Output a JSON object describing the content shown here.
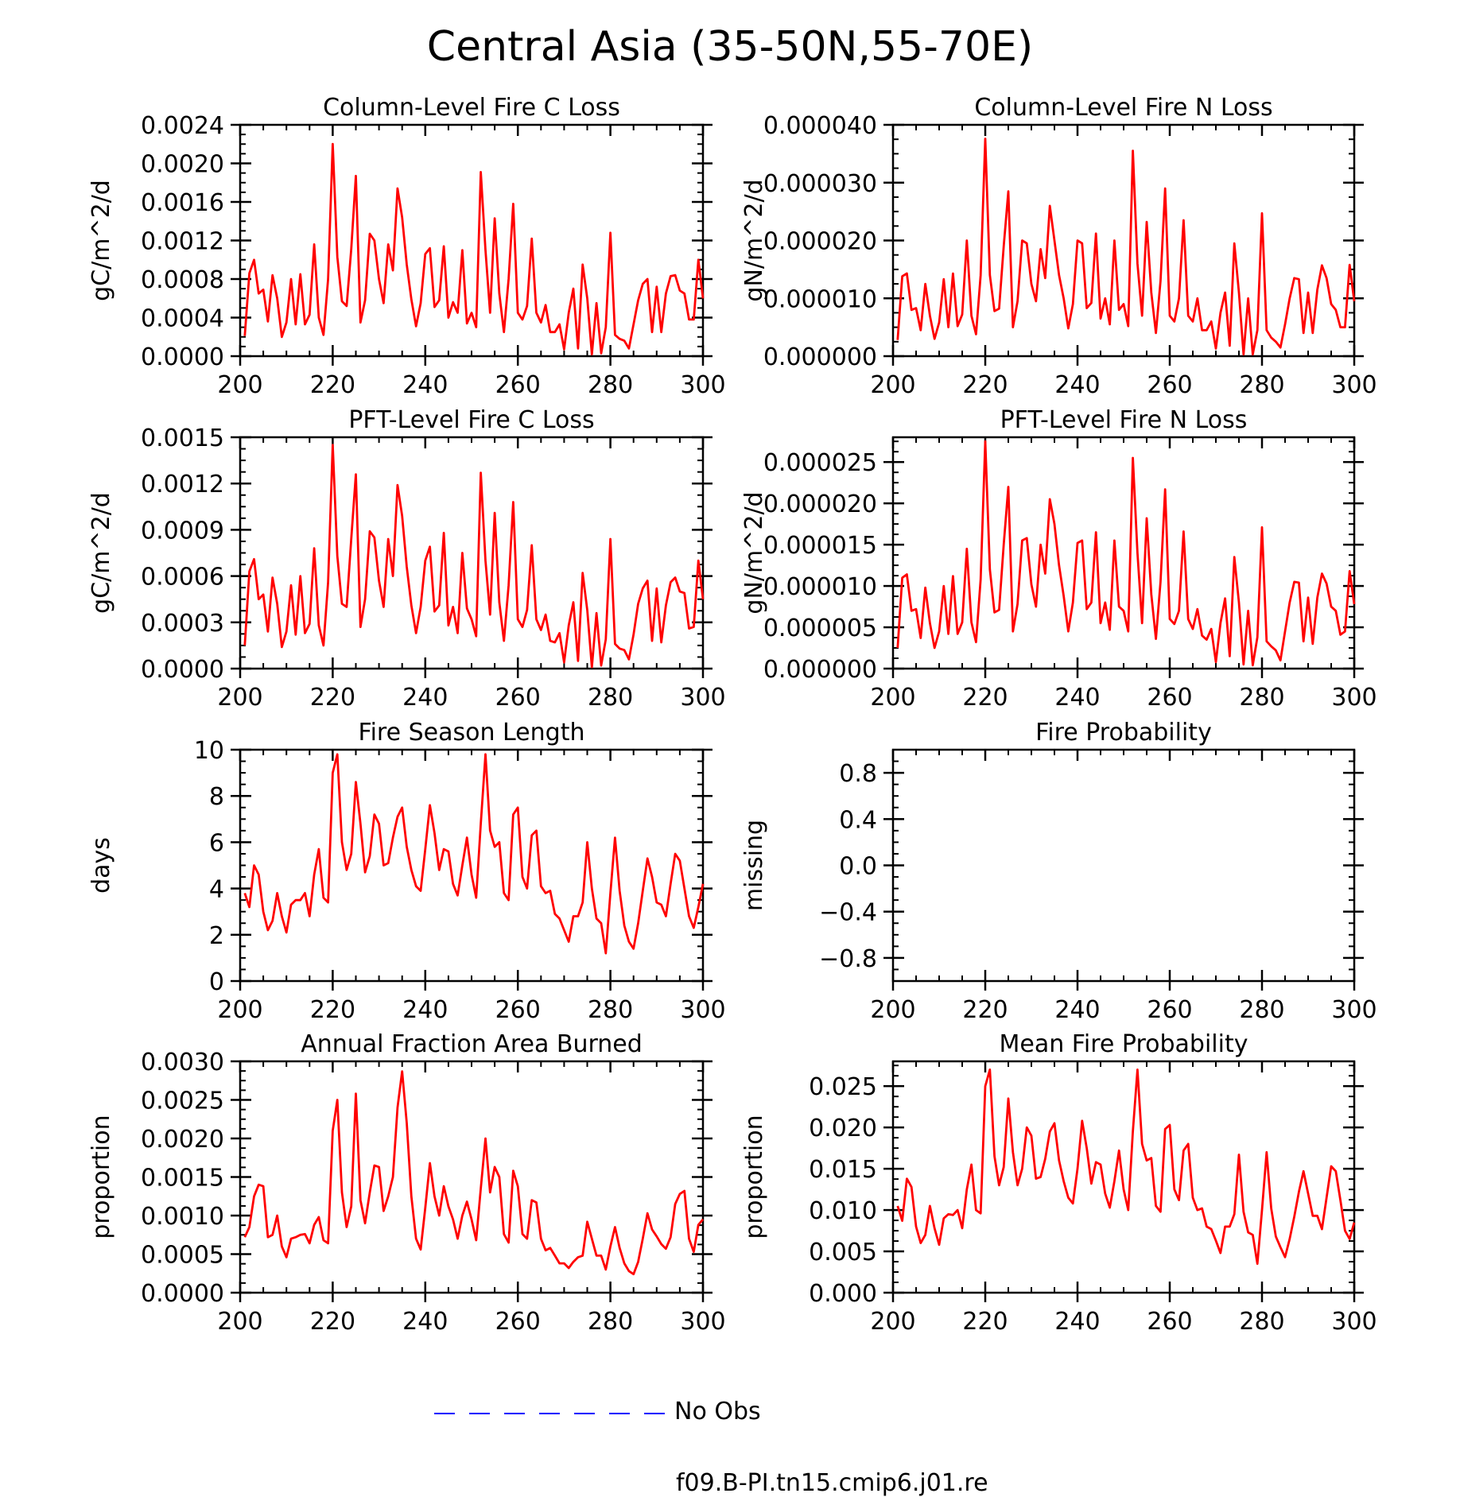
{
  "figure_title": "Central Asia (35-50N,55-70E)",
  "legend": [
    {
      "label": "No Obs",
      "color": "#0000ff",
      "dash": true
    },
    {
      "label": "f09.B-PI.tn15.cmip6.j01.re",
      "color": "#ff0000",
      "dash": false
    }
  ],
  "chart_data": [
    {
      "type": "line",
      "title": "Column-Level Fire C Loss",
      "ylabel": "gC/m^2/d",
      "xlim": [
        200,
        300
      ],
      "ylim": [
        0,
        0.0024
      ],
      "xticks": [
        "200",
        "220",
        "240",
        "260",
        "280",
        "300"
      ],
      "yticks": [
        "0.0000",
        "0.0004",
        "0.0008",
        "0.0012",
        "0.0016",
        "0.0020",
        "0.0024"
      ],
      "series": [
        {
          "color": "#ff0000",
          "x0": 201,
          "values": [
            0.00021,
            0.00086,
            0.001,
            0.00065,
            0.00069,
            0.00036,
            0.00084,
            0.0006,
            0.0002,
            0.00035,
            0.0008,
            0.00033,
            0.00085,
            0.00033,
            0.00043,
            0.00116,
            0.0004,
            0.00022,
            0.0008,
            0.0022,
            0.00103,
            0.00057,
            0.00052,
            0.00111,
            0.00187,
            0.00035,
            0.00058,
            0.00127,
            0.0012,
            0.0008,
            0.00055,
            0.00116,
            0.00089,
            0.00174,
            0.00144,
            0.00095,
            0.00059,
            0.00031,
            0.00055,
            0.00106,
            0.00112,
            0.00051,
            0.00058,
            0.00114,
            0.0004,
            0.00056,
            0.00045,
            0.0011,
            0.00034,
            0.00045,
            0.0003,
            0.00191,
            0.0011,
            0.00045,
            0.00143,
            0.00065,
            0.00025,
            0.0008,
            0.00158,
            0.00045,
            0.00038,
            0.00052,
            0.00122,
            0.00045,
            0.00035,
            0.00053,
            0.00025,
            0.00025,
            0.00033,
            7e-05,
            0.00045,
            0.0007,
            8e-05,
            0.00095,
            0.0006,
            2e-05,
            0.00055,
            3e-05,
            0.0003,
            0.00128,
            0.00022,
            0.00018,
            0.00016,
            8e-05,
            0.00033,
            0.00058,
            0.00075,
            0.0008,
            0.00025,
            0.00072,
            0.00025,
            0.00065,
            0.00083,
            0.00084,
            0.00068,
            0.00065,
            0.00038,
            0.00038,
            0.001,
            0.0006
          ]
        }
      ]
    },
    {
      "type": "line",
      "title": "Column-Level Fire N Loss",
      "ylabel": "gN/m^2/d",
      "xlim": [
        200,
        300
      ],
      "ylim": [
        0,
        4e-05
      ],
      "xticks": [
        "200",
        "220",
        "240",
        "260",
        "280",
        "300"
      ],
      "yticks": [
        "0.000000",
        "0.000010",
        "0.000020",
        "0.000030",
        "0.000040"
      ],
      "series": [
        {
          "color": "#ff0000",
          "x0": 201,
          "values": [
            2.8e-06,
            1.38e-05,
            1.43e-05,
            8e-06,
            8.3e-06,
            4.5e-06,
            1.25e-05,
            7e-06,
            3e-06,
            5.8e-06,
            1.33e-05,
            5e-06,
            1.43e-05,
            5.2e-06,
            7.2e-06,
            2e-05,
            7e-06,
            3.8e-06,
            1.4e-05,
            3.76e-05,
            1.4e-05,
            7.8e-06,
            8.2e-06,
            1.9e-05,
            2.85e-05,
            5e-06,
            9.5e-06,
            2e-05,
            1.95e-05,
            1.25e-05,
            9.5e-06,
            1.85e-05,
            1.35e-05,
            2.6e-05,
            2e-05,
            1.4e-05,
            1e-05,
            4.8e-06,
            9e-06,
            2e-05,
            1.95e-05,
            8.3e-06,
            9.2e-06,
            2.12e-05,
            6.5e-06,
            1e-05,
            5.5e-06,
            2e-05,
            8e-06,
            9e-06,
            5.2e-06,
            3.55e-05,
            1.6e-05,
            7e-06,
            2.32e-05,
            1.1e-05,
            4e-06,
            1.3e-05,
            2.9e-05,
            7e-06,
            6e-06,
            1e-05,
            2.35e-05,
            7e-06,
            6e-06,
            1e-05,
            4.5e-06,
            4.5e-06,
            6e-06,
            1.3e-06,
            7.5e-06,
            1.1e-05,
            1.8e-06,
            1.95e-05,
            1.1e-05,
            3e-07,
            1e-05,
            3e-07,
            4.5e-06,
            2.47e-05,
            4.5e-06,
            3.2e-06,
            2.5e-06,
            1.5e-06,
            5.5e-06,
            1e-05,
            1.35e-05,
            1.33e-05,
            4e-06,
            1.1e-05,
            4e-06,
            1.15e-05,
            1.57e-05,
            1.35e-05,
            9e-06,
            8e-06,
            5e-06,
            5e-06,
            1.58e-05,
            9.5e-06
          ]
        }
      ]
    },
    {
      "type": "line",
      "title": "PFT-Level Fire C Loss",
      "ylabel": "gC/m^2/d",
      "xlim": [
        200,
        300
      ],
      "ylim": [
        0,
        0.0015
      ],
      "xticks": [
        "200",
        "220",
        "240",
        "260",
        "280",
        "300"
      ],
      "yticks": [
        "0.0000",
        "0.0003",
        "0.0006",
        "0.0009",
        "0.0012",
        "0.0015"
      ],
      "series": [
        {
          "color": "#ff0000",
          "x0": 201,
          "values": [
            0.00015,
            0.00063,
            0.00071,
            0.00045,
            0.00048,
            0.00024,
            0.00059,
            0.00042,
            0.00014,
            0.00024,
            0.00054,
            0.00022,
            0.0006,
            0.00023,
            0.00029,
            0.00078,
            0.00028,
            0.00015,
            0.00056,
            0.00145,
            0.00073,
            0.00042,
            0.0004,
            0.00084,
            0.00126,
            0.00027,
            0.00045,
            0.00089,
            0.00085,
            0.00057,
            0.0004,
            0.00084,
            0.0006,
            0.00119,
            0.00099,
            0.00066,
            0.00041,
            0.00023,
            0.0004,
            0.0007,
            0.00079,
            0.00037,
            0.00041,
            0.00088,
            0.00028,
            0.0004,
            0.00023,
            0.00075,
            0.00039,
            0.00032,
            0.00021,
            0.00127,
            0.0007,
            0.00035,
            0.00101,
            0.00043,
            0.00018,
            0.00054,
            0.00108,
            0.00032,
            0.00027,
            0.00038,
            0.0008,
            0.00032,
            0.00025,
            0.00035,
            0.00018,
            0.00017,
            0.00023,
            4e-05,
            0.00028,
            0.00043,
            5e-05,
            0.00062,
            0.00038,
            1e-05,
            0.00036,
            2e-05,
            0.00019,
            0.00084,
            0.00016,
            0.00013,
            0.00012,
            6e-05,
            0.00022,
            0.00042,
            0.00052,
            0.00057,
            0.00018,
            0.00052,
            0.00017,
            0.00041,
            0.00056,
            0.00059,
            0.0005,
            0.00049,
            0.00026,
            0.00027,
            0.0007,
            0.00045
          ]
        }
      ]
    },
    {
      "type": "line",
      "title": "PFT-Level Fire N Loss",
      "ylabel": "gN/m^2/d",
      "xlim": [
        200,
        300
      ],
      "ylim": [
        0,
        2.8e-05
      ],
      "xticks": [
        "200",
        "220",
        "240",
        "260",
        "280",
        "300"
      ],
      "yticks": [
        "0.000000",
        "0.000005",
        "0.000010",
        "0.000015",
        "0.000020",
        "0.000025"
      ],
      "series": [
        {
          "color": "#ff0000",
          "x0": 201,
          "values": [
            2.5e-06,
            1.1e-05,
            1.14e-05,
            7e-06,
            7.2e-06,
            3.7e-06,
            9.8e-06,
            5.5e-06,
            2.5e-06,
            4.5e-06,
            1e-05,
            4.2e-06,
            1.12e-05,
            4.2e-06,
            5.6e-06,
            1.45e-05,
            5.6e-06,
            3.2e-06,
            1.08e-05,
            2.75e-05,
            1.2e-05,
            6.8e-06,
            7.1e-06,
            1.5e-05,
            2.2e-05,
            4.5e-06,
            7.8e-06,
            1.55e-05,
            1.58e-05,
            1.02e-05,
            7.5e-06,
            1.5e-05,
            1.15e-05,
            2.05e-05,
            1.75e-05,
            1.25e-05,
            8.8e-06,
            4.5e-06,
            8e-06,
            1.52e-05,
            1.55e-05,
            7.2e-06,
            8e-06,
            1.65e-05,
            5.5e-06,
            8e-06,
            4.7e-06,
            1.55e-05,
            7.5e-06,
            7e-06,
            4.5e-06,
            2.55e-05,
            1.4e-05,
            5.5e-06,
            1.82e-05,
            9e-06,
            3.6e-06,
            1.05e-05,
            2.17e-05,
            6e-06,
            5.4e-06,
            7e-06,
            1.66e-05,
            6e-06,
            4.8e-06,
            7.2e-06,
            4e-06,
            3.5e-06,
            4.8e-06,
            8e-07,
            5.5e-06,
            8.5e-06,
            1.5e-06,
            1.35e-05,
            8e-06,
            5e-07,
            7e-06,
            4e-07,
            3.8e-06,
            1.71e-05,
            3.3e-06,
            2.7e-06,
            2.2e-06,
            1e-06,
            4.5e-06,
            8e-06,
            1.05e-05,
            1.04e-05,
            3.3e-06,
            8.6e-06,
            3e-06,
            8.6e-06,
            1.15e-05,
            1.03e-05,
            7.5e-06,
            7e-06,
            4.1e-06,
            4.5e-06,
            1.18e-05,
            7.8e-06
          ]
        }
      ]
    },
    {
      "type": "line",
      "title": "Fire Season Length",
      "ylabel": "days",
      "xlim": [
        200,
        300
      ],
      "ylim": [
        0,
        10
      ],
      "xticks": [
        "200",
        "220",
        "240",
        "260",
        "280",
        "300"
      ],
      "yticks": [
        "0",
        "2",
        "4",
        "6",
        "8",
        "10"
      ],
      "series": [
        {
          "color": "#ff0000",
          "x0": 201,
          "values": [
            3.8,
            3.2,
            5.0,
            4.6,
            3.0,
            2.2,
            2.6,
            3.8,
            2.8,
            2.1,
            3.3,
            3.5,
            3.5,
            3.8,
            2.8,
            4.6,
            5.7,
            3.6,
            3.4,
            9.0,
            9.8,
            6.0,
            4.8,
            5.5,
            8.6,
            6.8,
            4.7,
            5.4,
            7.2,
            6.8,
            5.0,
            5.1,
            6.2,
            7.1,
            7.5,
            5.8,
            4.8,
            4.1,
            3.9,
            5.7,
            7.6,
            6.4,
            4.8,
            5.7,
            5.6,
            4.2,
            3.7,
            5.0,
            6.2,
            4.6,
            3.6,
            6.8,
            9.8,
            6.5,
            5.8,
            6.0,
            3.8,
            3.5,
            7.2,
            7.5,
            4.5,
            4.0,
            6.3,
            6.5,
            4.1,
            3.8,
            3.9,
            2.9,
            2.7,
            2.2,
            1.7,
            2.8,
            2.8,
            3.4,
            6.0,
            4.0,
            2.7,
            2.5,
            1.2,
            3.8,
            6.2,
            3.9,
            2.4,
            1.7,
            1.4,
            2.5,
            3.9,
            5.3,
            4.5,
            3.4,
            3.3,
            2.8,
            4.2,
            5.5,
            5.2,
            4.0,
            2.8,
            2.3,
            3.2,
            4.2
          ]
        }
      ]
    },
    {
      "type": "line",
      "title": "Fire Probability",
      "ylabel": "missing",
      "xlim": [
        200,
        300
      ],
      "ylim": [
        -1,
        1
      ],
      "xticks": [
        "200",
        "220",
        "240",
        "260",
        "280",
        "300"
      ],
      "yticks": [
        "−0.8",
        "−0.4",
        "0.0",
        "0.4",
        "0.8"
      ],
      "series": []
    },
    {
      "type": "line",
      "title": "Annual Fraction Area Burned",
      "ylabel": "proportion",
      "xlim": [
        200,
        300
      ],
      "ylim": [
        0,
        0.003
      ],
      "xticks": [
        "200",
        "220",
        "240",
        "260",
        "280",
        "300"
      ],
      "yticks": [
        "0.0000",
        "0.0005",
        "0.0010",
        "0.0015",
        "0.0020",
        "0.0025",
        "0.0030"
      ],
      "series": [
        {
          "color": "#ff0000",
          "x0": 201,
          "values": [
            0.00072,
            0.00085,
            0.00125,
            0.0014,
            0.00138,
            0.00072,
            0.00075,
            0.001,
            0.0006,
            0.00046,
            0.0007,
            0.00072,
            0.00075,
            0.00076,
            0.00064,
            0.00088,
            0.00098,
            0.00068,
            0.00064,
            0.0021,
            0.0025,
            0.0013,
            0.00085,
            0.00112,
            0.00258,
            0.0012,
            0.0009,
            0.0013,
            0.00165,
            0.00163,
            0.00106,
            0.00125,
            0.0015,
            0.0024,
            0.00287,
            0.0022,
            0.00125,
            0.0007,
            0.00056,
            0.0011,
            0.00168,
            0.00125,
            0.001,
            0.00138,
            0.00112,
            0.00095,
            0.0007,
            0.001,
            0.00118,
            0.00095,
            0.00068,
            0.00135,
            0.002,
            0.0013,
            0.00163,
            0.0015,
            0.00076,
            0.00065,
            0.00158,
            0.00138,
            0.00076,
            0.0007,
            0.0012,
            0.00117,
            0.0007,
            0.00055,
            0.00058,
            0.00048,
            0.00038,
            0.00038,
            0.00032,
            0.0004,
            0.00046,
            0.00048,
            0.00092,
            0.0007,
            0.00048,
            0.00048,
            0.0003,
            0.0006,
            0.00085,
            0.00058,
            0.00038,
            0.00028,
            0.00024,
            0.0004,
            0.0007,
            0.00103,
            0.00082,
            0.00073,
            0.00063,
            0.00057,
            0.00072,
            0.00115,
            0.00128,
            0.00132,
            0.0007,
            0.00053,
            0.00088,
            0.00095
          ]
        }
      ]
    },
    {
      "type": "line",
      "title": "Mean Fire Probability",
      "ylabel": "proportion",
      "xlim": [
        200,
        300
      ],
      "ylim": [
        0,
        0.028
      ],
      "xticks": [
        "200",
        "220",
        "240",
        "260",
        "280",
        "300"
      ],
      "yticks": [
        "0.000",
        "0.005",
        "0.010",
        "0.015",
        "0.020",
        "0.025"
      ],
      "series": [
        {
          "color": "#ff0000",
          "x0": 201,
          "values": [
            0.0105,
            0.0087,
            0.0138,
            0.0128,
            0.008,
            0.006,
            0.007,
            0.0105,
            0.0078,
            0.0058,
            0.009,
            0.0095,
            0.0094,
            0.01,
            0.0078,
            0.0125,
            0.0155,
            0.01,
            0.0096,
            0.025,
            0.027,
            0.0165,
            0.013,
            0.0152,
            0.0235,
            0.017,
            0.013,
            0.015,
            0.02,
            0.019,
            0.0138,
            0.014,
            0.0162,
            0.0195,
            0.0205,
            0.016,
            0.0135,
            0.0115,
            0.0108,
            0.015,
            0.0208,
            0.0175,
            0.0132,
            0.0158,
            0.0155,
            0.012,
            0.0103,
            0.0135,
            0.0172,
            0.0125,
            0.01,
            0.0195,
            0.027,
            0.018,
            0.016,
            0.0163,
            0.0105,
            0.0098,
            0.0198,
            0.0203,
            0.0125,
            0.0112,
            0.0172,
            0.018,
            0.0115,
            0.01,
            0.0102,
            0.008,
            0.0077,
            0.0063,
            0.0048,
            0.008,
            0.008,
            0.0095,
            0.0167,
            0.0098,
            0.0073,
            0.007,
            0.0035,
            0.01,
            0.017,
            0.0102,
            0.0068,
            0.0055,
            0.0043,
            0.0065,
            0.0092,
            0.0122,
            0.0147,
            0.012,
            0.0093,
            0.0093,
            0.0077,
            0.0115,
            0.0153,
            0.0147,
            0.0112,
            0.0075,
            0.0065,
            0.0085
          ]
        }
      ]
    }
  ]
}
